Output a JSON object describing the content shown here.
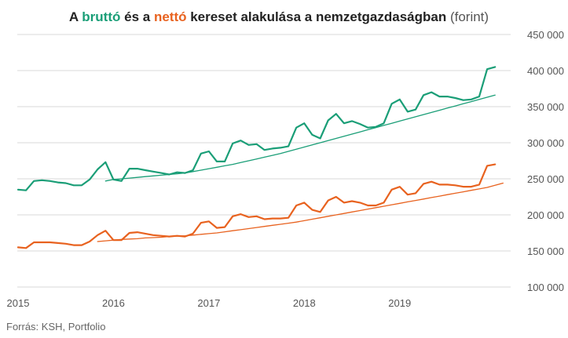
{
  "chart_data": {
    "type": "line",
    "title_parts": [
      {
        "text": "A ",
        "role": "plain"
      },
      {
        "text": "bruttó",
        "role": "brutto"
      },
      {
        "text": " és a ",
        "role": "plain"
      },
      {
        "text": "nettó",
        "role": "netto"
      },
      {
        "text": " kereset alakulása a nemzetgazdaságban",
        "role": "plain"
      },
      {
        "text": " (forint)",
        "role": "unit"
      }
    ],
    "source": "Forrás: KSH, Portfolio",
    "ylim": [
      100000,
      450000
    ],
    "y_ticks": [
      100000,
      150000,
      200000,
      250000,
      300000,
      350000,
      400000,
      450000
    ],
    "y_tick_labels": [
      "100 000",
      "150 000",
      "200 000",
      "250 000",
      "300 000",
      "350 000",
      "400 000",
      "450 000"
    ],
    "x_ticks": [
      {
        "label": "2015",
        "month_index": 0
      },
      {
        "label": "2016",
        "month_index": 12
      },
      {
        "label": "2017",
        "month_index": 24
      },
      {
        "label": "2018",
        "month_index": 36
      },
      {
        "label": "2019",
        "month_index": 48
      }
    ],
    "grid": true,
    "colors": {
      "brutto": "#1a9e77",
      "netto": "#e8621f",
      "title_text": "#222222",
      "unit_text": "#555555",
      "grid": "#d9d9d9"
    },
    "series": [
      {
        "key": "brutto_monthly",
        "color": "#1a9e77",
        "width": 2.2,
        "start_month": 0,
        "values": [
          235000,
          234000,
          247000,
          248000,
          247000,
          245000,
          244000,
          241000,
          241000,
          249000,
          263000,
          273000,
          249000,
          247000,
          264000,
          264000,
          262000,
          260000,
          258000,
          256000,
          259000,
          258000,
          262000,
          285000,
          288000,
          274000,
          274000,
          299000,
          303000,
          297000,
          298000,
          290000,
          292000,
          293000,
          295000,
          321000,
          327000,
          311000,
          306000,
          331000,
          340000,
          327000,
          330000,
          326000,
          321000,
          322000,
          327000,
          354000,
          360000,
          343000,
          346000,
          366000,
          370000,
          364000,
          364000,
          362000,
          359000,
          360000,
          364000,
          402000,
          405000
        ]
      },
      {
        "key": "brutto_trend",
        "color": "#1a9e77",
        "width": 1.3,
        "start_month": 11,
        "values": [
          247000,
          249000,
          250000,
          251000,
          252000,
          253000,
          254000,
          255000,
          256000,
          257000,
          258000,
          260000,
          262000,
          264000,
          266000,
          268000,
          270000,
          272500,
          275000,
          277500,
          280000,
          282500,
          285000,
          288000,
          291000,
          294000,
          297000,
          300000,
          303000,
          306000,
          309000,
          312000,
          315000,
          318000,
          321000,
          324000,
          327000,
          330000,
          333000,
          336000,
          339000,
          342000,
          345000,
          348000,
          351000,
          354000,
          357000,
          360000,
          363000,
          366000
        ]
      },
      {
        "key": "netto_monthly",
        "color": "#e8621f",
        "width": 2.2,
        "start_month": 0,
        "values": [
          155000,
          154000,
          162000,
          162000,
          162000,
          161000,
          160000,
          158000,
          158000,
          163000,
          172000,
          178000,
          165000,
          165000,
          175000,
          176000,
          174000,
          172000,
          171000,
          170000,
          171000,
          170000,
          174000,
          189000,
          191000,
          182000,
          183000,
          198000,
          201000,
          197000,
          198000,
          194000,
          195000,
          195000,
          196000,
          213000,
          217000,
          207000,
          204000,
          220000,
          225000,
          217000,
          219000,
          217000,
          213000,
          213000,
          217000,
          235000,
          239000,
          228000,
          230000,
          243000,
          246000,
          242000,
          242000,
          241000,
          239000,
          239000,
          242000,
          268000,
          270000
        ]
      },
      {
        "key": "netto_trend",
        "color": "#e8621f",
        "width": 1.3,
        "start_month": 10,
        "values": [
          163000,
          164000,
          165000,
          166000,
          166500,
          167000,
          168000,
          168500,
          169000,
          170000,
          170500,
          171000,
          172000,
          173000,
          174000,
          175000,
          176500,
          178000,
          179500,
          181000,
          182500,
          184000,
          185500,
          187000,
          188500,
          190000,
          192000,
          194000,
          196000,
          198000,
          200000,
          202000,
          204000,
          206000,
          208000,
          210000,
          212000,
          214000,
          216000,
          218000,
          220000,
          222000,
          224000,
          226000,
          228000,
          230000,
          232000,
          234000,
          236000,
          238000,
          241000,
          244000
        ]
      }
    ]
  }
}
